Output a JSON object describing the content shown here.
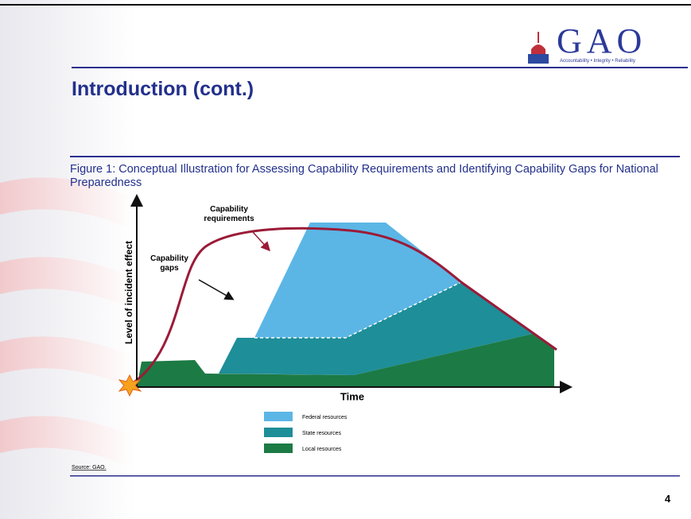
{
  "logo": {
    "name": "GAO",
    "tagline": "Accountability • Integrity • Reliability"
  },
  "header": {
    "title": "Introduction (cont.)"
  },
  "figure": {
    "caption": "Figure 1: Conceptual Illustration for Assessing Capability Requirements and Identifying Capability Gaps for National Preparedness",
    "y_axis_label": "Level of incident effect",
    "x_axis_label": "Time",
    "annotations": [
      "Capability requirements",
      "Capability gaps"
    ],
    "legend": [
      "Federal resources",
      "State resources",
      "Local resources"
    ],
    "source": "Source: GAO."
  },
  "footer": {
    "page": "4"
  }
}
